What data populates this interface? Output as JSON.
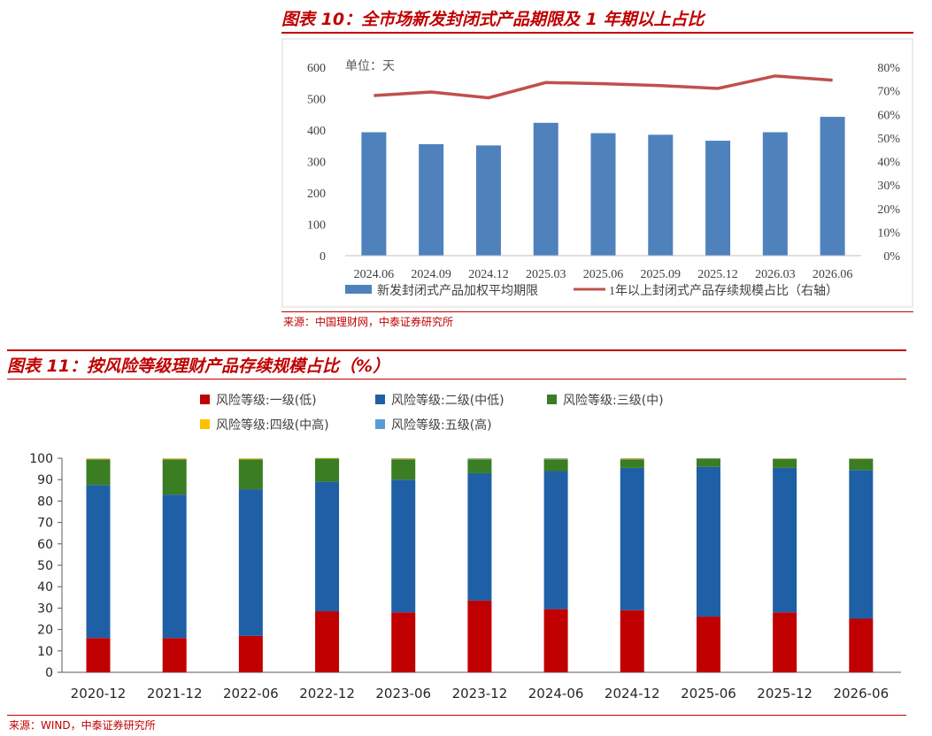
{
  "figure10": {
    "title": "图表 10：全市场新发封闭式产品期限及 1 年期以上占比",
    "source": "来源：中国理财网，中泰证券研究所",
    "chart_data": {
      "type": "bar",
      "unit_label": "单位：天",
      "categories": [
        "2024.06",
        "2024.09",
        "2024.12",
        "2025.03",
        "2025.06",
        "2025.09",
        "2025.12",
        "2026.03",
        "2026.06"
      ],
      "series": [
        {
          "name": "新发封闭式产品加权平均期限",
          "kind": "bar",
          "axis": "left",
          "color": "#4f81bd",
          "values": [
            393,
            355,
            351,
            423,
            390,
            385,
            366,
            393,
            442
          ]
        },
        {
          "name": "1年以上封闭式产品存续规模占比（右轴）",
          "kind": "line",
          "axis": "right",
          "color": "#c0504d",
          "values": [
            68,
            69.5,
            67,
            73.5,
            73,
            72.2,
            71,
            76.3,
            74.5
          ]
        }
      ],
      "yleft": {
        "ticks": [
          "0",
          "100",
          "200",
          "300",
          "400",
          "500",
          "600"
        ],
        "ylim": [
          0,
          600
        ]
      },
      "yright": {
        "ticks": [
          "0%",
          "10%",
          "20%",
          "30%",
          "40%",
          "50%",
          "60%",
          "70%",
          "80%"
        ],
        "ylim": [
          0,
          80
        ]
      },
      "grid": false,
      "legend": "bottom"
    }
  },
  "figure11": {
    "title": "图表 11：按风险等级理财产品存续规模占比（%）",
    "source": "来源：WIND，中泰证券研究所",
    "chart_data": {
      "type": "bar",
      "stacked": true,
      "categories": [
        "2020-12",
        "2021-12",
        "2022-06",
        "2022-12",
        "2023-06",
        "2023-12",
        "2024-06",
        "2024-12",
        "2025-06",
        "2025-12",
        "2026-06"
      ],
      "series": [
        {
          "name": "风险等级:一级(低)",
          "color": "#c00000",
          "values": [
            16,
            16,
            17,
            28.5,
            28,
            33.5,
            29.5,
            29,
            26,
            28,
            25
          ]
        },
        {
          "name": "风险等级:二级(中低)",
          "color": "#1f5fa6",
          "values": [
            71.5,
            67,
            68.5,
            60.5,
            62,
            59.5,
            64.5,
            66.5,
            70,
            67.5,
            69.5
          ]
        },
        {
          "name": "风险等级:三级(中)",
          "color": "#3a7d22",
          "values": [
            12,
            16.5,
            14,
            10.8,
            9.5,
            6.5,
            5.5,
            4,
            3.8,
            4.2,
            5.2
          ]
        },
        {
          "name": "风险等级:四级(中高)",
          "color": "#ffc000",
          "values": [
            0.3,
            0.4,
            0.4,
            0.2,
            0.3,
            0.2,
            0.2,
            0.3,
            0.1,
            0.2,
            0.2
          ]
        },
        {
          "name": "风险等级:五级(高)",
          "color": "#5b9bd5",
          "values": [
            0.1,
            0.1,
            0.1,
            0.1,
            0.2,
            0.3,
            0.3,
            0.2,
            0.1,
            0.1,
            0.1
          ]
        }
      ],
      "yticks": [
        "0",
        "10",
        "20",
        "30",
        "40",
        "50",
        "60",
        "70",
        "80",
        "90",
        "100"
      ],
      "ylim": [
        0,
        100
      ],
      "grid": false,
      "legend": "top"
    }
  }
}
